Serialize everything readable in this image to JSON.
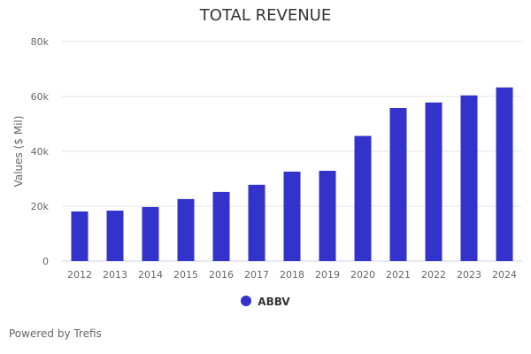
{
  "chart_data": {
    "type": "bar",
    "title": "TOTAL REVENUE",
    "xlabel": "",
    "ylabel": "Values ($ Mil)",
    "ylim": [
      0,
      80000
    ],
    "yticks": [
      0,
      20000,
      40000,
      60000,
      80000
    ],
    "ytick_labels": [
      "0",
      "20k",
      "40k",
      "60k",
      "80k"
    ],
    "grid": true,
    "legend_position": "bottom-center",
    "categories": [
      "2012",
      "2013",
      "2014",
      "2015",
      "2016",
      "2017",
      "2018",
      "2019",
      "2020",
      "2021",
      "2022",
      "2023",
      "2024"
    ],
    "series": [
      {
        "name": "ABBV",
        "color": "#3333cc",
        "values": [
          18100,
          18400,
          19700,
          22600,
          25200,
          27800,
          32600,
          32900,
          45600,
          55800,
          57800,
          60400,
          63300
        ]
      }
    ]
  },
  "footer": {
    "credit": "Powered by Trefis"
  }
}
